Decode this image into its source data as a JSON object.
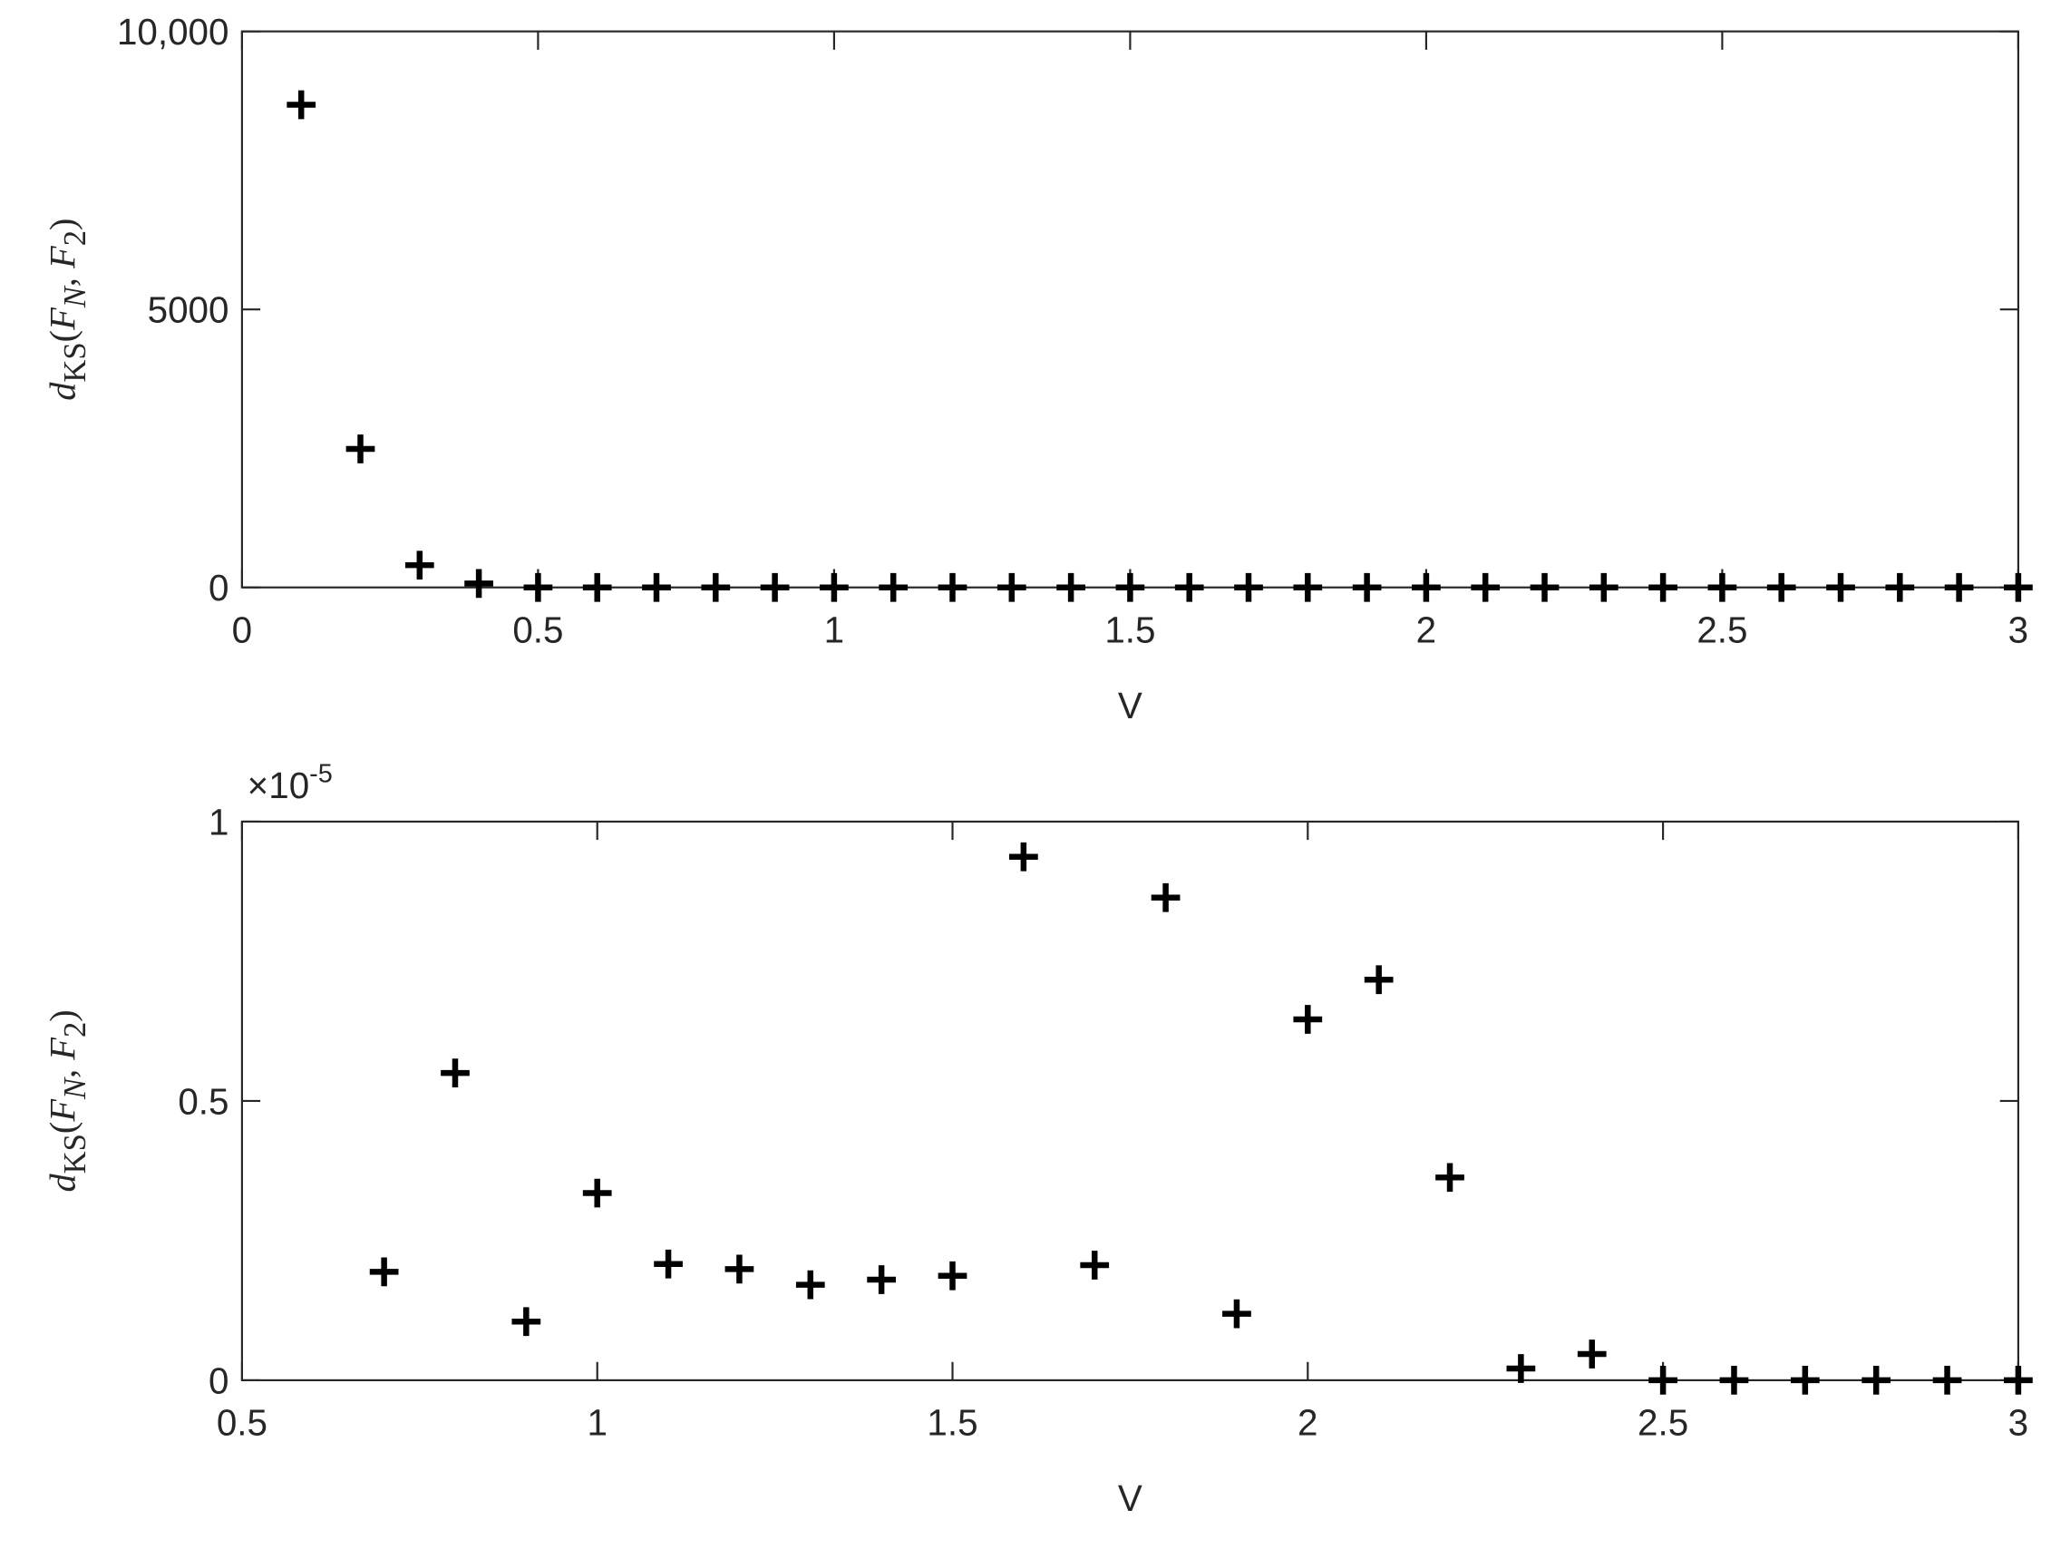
{
  "chart_data": [
    {
      "type": "scatter",
      "xlabel": "V",
      "ylabel": "d_KS(F_N, F_2)",
      "color": "#000000",
      "x": [
        0.1,
        0.2,
        0.3,
        0.4,
        0.5,
        0.6,
        0.7,
        0.8,
        0.9,
        1.0,
        1.1,
        1.2,
        1.3,
        1.4,
        1.5,
        1.6,
        1.7,
        1.8,
        1.9,
        2.0,
        2.1,
        2.2,
        2.3,
        2.4,
        2.5,
        2.6,
        2.7,
        2.8,
        2.9,
        3.0
      ],
      "values": [
        8680,
        2490,
        400,
        70,
        0,
        0,
        0,
        0,
        0,
        0,
        0,
        0,
        0,
        0,
        0,
        0,
        0,
        0,
        0,
        0,
        0,
        0,
        0,
        0,
        0,
        0,
        0,
        0,
        0,
        0
      ],
      "xlim": [
        0,
        3
      ],
      "xticks": [
        0,
        0.5,
        1,
        1.5,
        2,
        2.5,
        3
      ],
      "ylim": [
        0,
        10000
      ],
      "yticks": [
        0,
        5000,
        {
          "value": 10000,
          "label": "10,000"
        }
      ]
    },
    {
      "type": "scatter",
      "xlabel": "V",
      "ylabel": "d_KS(F_N, F_2)",
      "color": "#000000",
      "y_multiplier": {
        "base": "×10",
        "exponent": "-5"
      },
      "x": [
        0.7,
        0.8,
        0.9,
        1.0,
        1.1,
        1.2,
        1.3,
        1.4,
        1.5,
        1.6,
        1.7,
        1.8,
        1.9,
        2.0,
        2.1,
        2.2,
        2.3,
        2.4,
        2.5,
        2.6,
        2.7,
        2.8,
        2.9,
        3.0
      ],
      "values": [
        0.194,
        0.55,
        0.105,
        0.335,
        0.208,
        0.199,
        0.171,
        0.18,
        0.187,
        0.937,
        0.206,
        0.864,
        0.119,
        0.646,
        0.717,
        0.363,
        0.021,
        0.047,
        0,
        0,
        0,
        0,
        0,
        0
      ],
      "xlim": [
        0.5,
        3
      ],
      "xticks": [
        0.5,
        1,
        1.5,
        2,
        2.5,
        3
      ],
      "ylim": [
        0,
        1
      ],
      "yticks": [
        0,
        0.5,
        1
      ]
    }
  ]
}
